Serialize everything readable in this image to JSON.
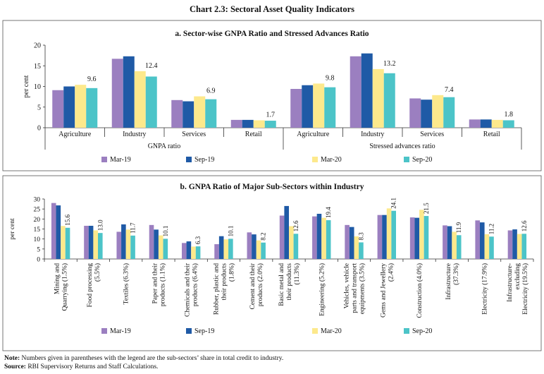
{
  "page": {
    "title": "Chart 2.3: Sectoral Asset Quality Indicators"
  },
  "colors": {
    "mar19": "#9b7fc0",
    "sep19": "#1f5aa6",
    "mar20": "#fde98c",
    "sep20": "#4cc4c8",
    "frame": "#555555",
    "axis": "#333333"
  },
  "chart_data": [
    {
      "type": "bar",
      "title": "a. Sector-wise GNPA Ratio and Stressed Advances Ratio",
      "ylabel": "per cent",
      "ylim": [
        0,
        20
      ],
      "yticks": [
        0,
        5,
        10,
        15,
        20
      ],
      "groups": [
        {
          "label": "GNPA ratio",
          "categories": [
            "Agriculture",
            "Industry",
            "Services",
            "Retail"
          ]
        },
        {
          "label": "Stressed advances ratio",
          "categories": [
            "Agriculture",
            "Industry",
            "Services",
            "Retail"
          ]
        }
      ],
      "categories": [
        "Agriculture",
        "Industry",
        "Services",
        "Retail",
        "Agriculture",
        "Industry",
        "Services",
        "Retail"
      ],
      "series": [
        {
          "name": "Mar-19",
          "values": [
            9.1,
            16.7,
            6.7,
            1.9,
            9.4,
            17.3,
            7.1,
            2.0
          ]
        },
        {
          "name": "Sep-19",
          "values": [
            10.0,
            17.3,
            6.4,
            1.9,
            10.3,
            18.0,
            6.8,
            2.0
          ]
        },
        {
          "name": "Mar-20",
          "values": [
            10.4,
            13.7,
            7.6,
            1.8,
            10.7,
            14.2,
            7.9,
            1.9
          ]
        },
        {
          "name": "Sep-20",
          "values": [
            9.6,
            12.4,
            6.9,
            1.7,
            9.8,
            13.2,
            7.4,
            1.8
          ]
        }
      ],
      "data_labels": [
        "9.6",
        "12.4",
        "6.9",
        "1.7",
        "9.8",
        "13.2",
        "7.4",
        "1.8"
      ],
      "legend": [
        "Mar-19",
        "Sep-19",
        "Mar-20",
        "Sep-20"
      ],
      "legend_position": "bottom"
    },
    {
      "type": "bar",
      "title": "b. GNPA Ratio of Major Sub-Sectors within Industry",
      "ylabel": "per cent",
      "ylim": [
        0,
        30
      ],
      "yticks": [
        0,
        5,
        10,
        15,
        20,
        25,
        30
      ],
      "categories": [
        [
          "Mining and",
          "Quarrying (1.5%)"
        ],
        [
          "Food processing",
          "(5.5%)"
        ],
        [
          "Textiles (6.3%)"
        ],
        [
          "Paper and their",
          "products (1.1%)"
        ],
        [
          "Chemicals and their",
          "products (6.4%)"
        ],
        [
          "Rubber, plastic and",
          "their products",
          "(1.8%)"
        ],
        [
          "Cement  and their",
          "products (2.0%)"
        ],
        [
          "Basic metal and",
          "their products",
          "(11.3%)"
        ],
        [
          "Engineering (5.2%)"
        ],
        [
          "Vehicles, vehicle",
          "parts and transport",
          "equipments (3.5%)"
        ],
        [
          "Gems and Jewellery",
          "(2.4%)"
        ],
        [
          "Construction (4.0%)"
        ],
        [
          "Infrastructure",
          "(37.3%)"
        ],
        [
          "Electricity (17.9%)"
        ],
        [
          "Infrastructure-",
          "excluding",
          "Electricity (19.5%)"
        ]
      ],
      "series": [
        {
          "name": "Mar-19",
          "values": [
            28.0,
            16.6,
            13.6,
            17.0,
            8.0,
            7.4,
            13.3,
            21.7,
            21.3,
            17.0,
            22.0,
            20.8,
            16.8,
            19.3,
            14.3
          ]
        },
        {
          "name": "Sep-19",
          "values": [
            26.8,
            16.6,
            17.3,
            14.7,
            8.8,
            11.4,
            12.3,
            26.5,
            22.6,
            16.0,
            22.0,
            20.6,
            16.4,
            18.3,
            14.8
          ]
        },
        {
          "name": "Mar-20",
          "values": [
            16.5,
            14.3,
            14.7,
            11.8,
            6.2,
            9.8,
            9.3,
            16.4,
            20.6,
            11.3,
            25.3,
            24.6,
            13.6,
            12.4,
            12.5
          ]
        },
        {
          "name": "Sep-20",
          "values": [
            15.6,
            13.0,
            11.7,
            10.1,
            6.3,
            10.1,
            8.2,
            12.6,
            19.4,
            8.3,
            24.1,
            21.5,
            11.9,
            11.2,
            12.6
          ]
        }
      ],
      "data_labels": [
        "15.6",
        "13.0",
        "11.7",
        "10.1",
        "6.3",
        "10.1",
        "8.2",
        "12.6",
        "19.4",
        "8.3",
        "24.1",
        "21.5",
        "11.9",
        "11.2",
        "12.6"
      ],
      "legend": [
        "Mar-19",
        "Sep-19",
        "Mar-20",
        "Sep-20"
      ],
      "legend_position": "bottom"
    }
  ],
  "footer": {
    "note_label": "Note:",
    "note_text": " Numbers given in parentheses with the legend are the sub-sectors’ share in total credit to industry.",
    "source_label": "Source:",
    "source_text": " RBI Supervisory Returns and Staff Calculations."
  }
}
